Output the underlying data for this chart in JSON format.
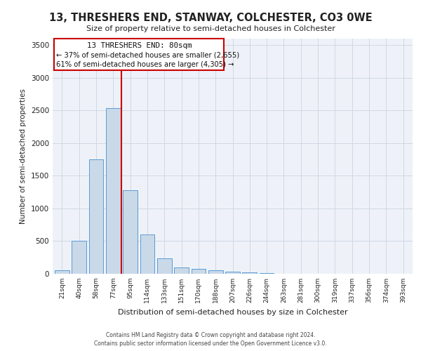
{
  "title": "13, THRESHERS END, STANWAY, COLCHESTER, CO3 0WE",
  "subtitle": "Size of property relative to semi-detached houses in Colchester",
  "xlabel": "Distribution of semi-detached houses by size in Colchester",
  "ylabel": "Number of semi-detached properties",
  "categories": [
    "21sqm",
    "40sqm",
    "58sqm",
    "77sqm",
    "95sqm",
    "114sqm",
    "133sqm",
    "151sqm",
    "170sqm",
    "188sqm",
    "207sqm",
    "226sqm",
    "244sqm",
    "263sqm",
    "281sqm",
    "300sqm",
    "319sqm",
    "337sqm",
    "356sqm",
    "374sqm",
    "393sqm"
  ],
  "values": [
    50,
    500,
    1750,
    2540,
    1280,
    600,
    240,
    100,
    70,
    50,
    30,
    20,
    10,
    5,
    3,
    2,
    1,
    0,
    0,
    0,
    0
  ],
  "bar_color": "#c9d9e8",
  "bar_edge_color": "#5b9bd5",
  "grid_color": "#d0d8e4",
  "background_color": "#eef2f8",
  "red_line_x": 3.5,
  "annotation_title": "13 THRESHERS END: 80sqm",
  "annotation_line1": "← 37% of semi-detached houses are smaller (2,655)",
  "annotation_line2": "61% of semi-detached houses are larger (4,305) →",
  "annotation_box_color": "#ffffff",
  "annotation_border_color": "#cc0000",
  "vline_color": "#cc0000",
  "ylim": [
    0,
    3600
  ],
  "yticks": [
    0,
    500,
    1000,
    1500,
    2000,
    2500,
    3000,
    3500
  ],
  "footer_line1": "Contains HM Land Registry data © Crown copyright and database right 2024.",
  "footer_line2": "Contains public sector information licensed under the Open Government Licence v3.0."
}
